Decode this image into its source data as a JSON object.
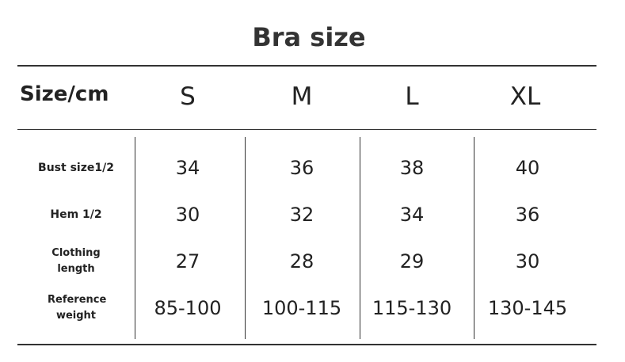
{
  "title": "Bra size",
  "header": {
    "label": "Size/cm",
    "sizes": [
      "S",
      "M",
      "L",
      "XL"
    ]
  },
  "rows": [
    {
      "label": "Bust size1/2",
      "values": [
        "34",
        "36",
        "38",
        "40"
      ]
    },
    {
      "label": "Hem 1/2",
      "values": [
        "30",
        "32",
        "34",
        "36"
      ]
    },
    {
      "label": "Clothing length",
      "values": [
        "27",
        "28",
        "29",
        "30"
      ]
    },
    {
      "label": "Reference weight",
      "values": [
        "85-100",
        "100-115",
        "115-130",
        "130-145"
      ]
    }
  ]
}
